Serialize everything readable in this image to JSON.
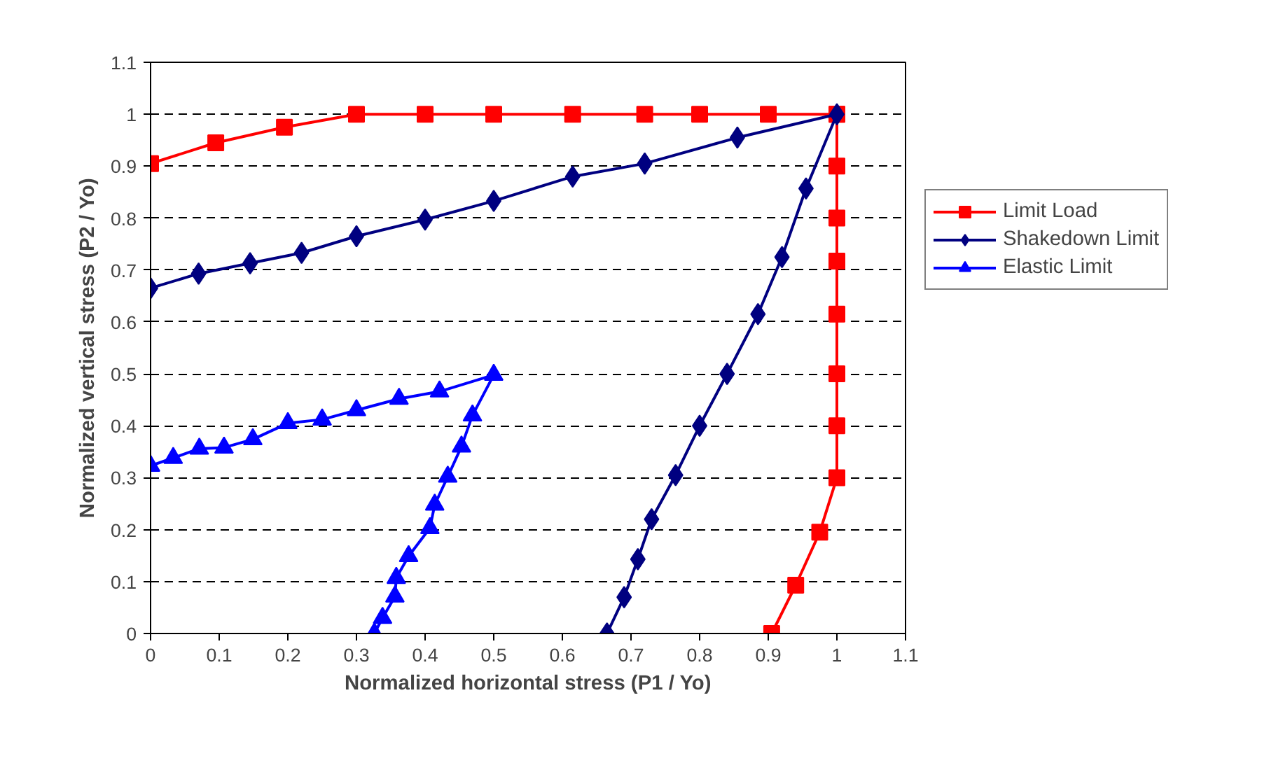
{
  "chart_data": {
    "type": "line",
    "xlabel": "Normalized horizontal stress (P1 / Yo)",
    "ylabel": "Normalized vertical stress (P2 / Yo)",
    "xlim": [
      0,
      1.1
    ],
    "ylim": [
      0,
      1.1
    ],
    "xticks": [
      0,
      0.1,
      0.2,
      0.3,
      0.4,
      0.5,
      0.6,
      0.7,
      0.8,
      0.9,
      1,
      1.1
    ],
    "yticks": [
      0,
      0.1,
      0.2,
      0.3,
      0.4,
      0.5,
      0.6,
      0.7,
      0.8,
      0.9,
      1,
      1.1
    ],
    "grid": "y",
    "legend": "right",
    "line_style": "solid",
    "series": [
      {
        "name": "Limit Load",
        "color": "#ff0000",
        "marker": "square",
        "x": [
          0,
          0.095,
          0.195,
          0.3,
          0.4,
          0.5,
          0.615,
          0.72,
          0.8,
          0.9,
          1,
          1,
          1,
          1,
          1,
          1,
          1,
          1,
          1,
          0.975,
          0.94,
          0.905
        ],
        "values": [
          0.905,
          0.945,
          0.975,
          1,
          1,
          1,
          1,
          1,
          1,
          1,
          1,
          1,
          0.9,
          0.8,
          0.717,
          0.615,
          0.5,
          0.4,
          0.3,
          0.195,
          0.093,
          0
        ]
      },
      {
        "name": "Shakedown Limit",
        "color": "#000080",
        "marker": "diamond",
        "x": [
          0,
          0.07,
          0.145,
          0.22,
          0.3,
          0.4,
          0.5,
          0.615,
          0.72,
          0.855,
          1,
          0.955,
          0.92,
          0.885,
          0.84,
          0.8,
          0.765,
          0.73,
          0.71,
          0.69,
          0.665
        ],
        "values": [
          0.665,
          0.693,
          0.713,
          0.733,
          0.765,
          0.797,
          0.833,
          0.88,
          0.905,
          0.955,
          1,
          0.857,
          0.725,
          0.615,
          0.5,
          0.4,
          0.305,
          0.22,
          0.143,
          0.07,
          0
        ]
      },
      {
        "name": "Elastic Limit",
        "color": "#0000ff",
        "marker": "triangle",
        "x": [
          0,
          0.033,
          0.071,
          0.107,
          0.149,
          0.2,
          0.25,
          0.3,
          0.362,
          0.421,
          0.5,
          0.469,
          0.453,
          0.433,
          0.414,
          0.407,
          0.376,
          0.358,
          0.356,
          0.338,
          0.326
        ],
        "values": [
          0.323,
          0.338,
          0.356,
          0.358,
          0.374,
          0.405,
          0.412,
          0.43,
          0.452,
          0.466,
          0.498,
          0.42,
          0.36,
          0.302,
          0.248,
          0.203,
          0.149,
          0.107,
          0.071,
          0.03,
          0
        ]
      }
    ]
  }
}
